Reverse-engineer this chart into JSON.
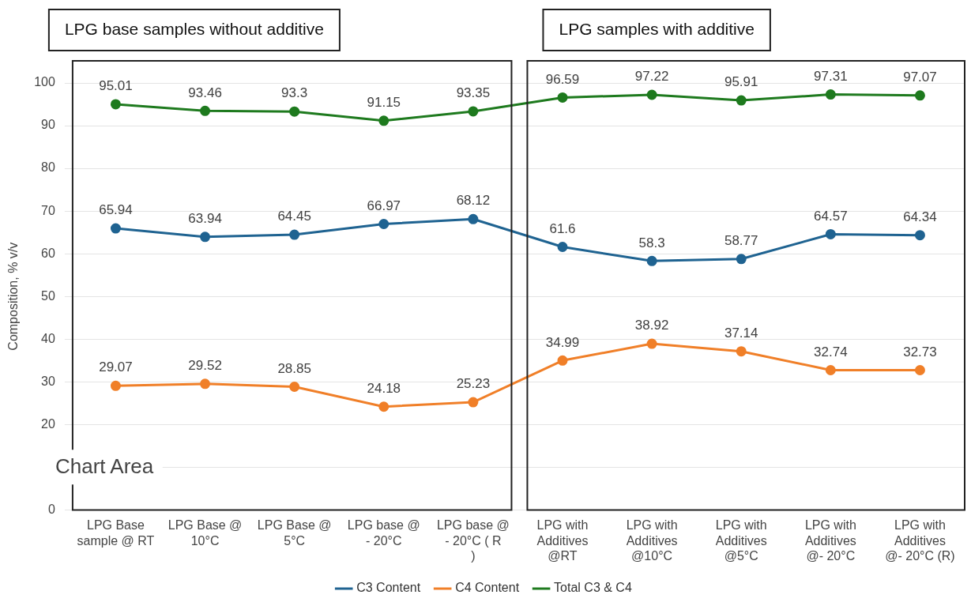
{
  "chart_data": {
    "type": "line",
    "ylabel": "Composition, % v/v",
    "categories": [
      "LPG Base sample @ RT",
      "LPG Base @ 10°C",
      "LPG Base @ 5°C",
      "LPG base @ - 20°C",
      "LPG base @ - 20°C ( R )",
      "LPG with Additives @RT",
      "LPG with Additives @10°C",
      "LPG with Additives @5°C",
      "LPG with Additives @- 20°C",
      "LPG with Additives @- 20°C (R)"
    ],
    "series": [
      {
        "name": "C3 Content",
        "color": "#1f6391",
        "values": [
          65.94,
          63.94,
          64.45,
          66.97,
          68.12,
          61.6,
          58.3,
          58.77,
          64.57,
          64.34
        ]
      },
      {
        "name": "C4 Content",
        "color": "#f07f28",
        "values": [
          29.07,
          29.52,
          28.85,
          24.18,
          25.23,
          34.99,
          38.92,
          37.14,
          32.74,
          32.73
        ]
      },
      {
        "name": "Total C3 & C4",
        "color": "#1e7a1e",
        "values": [
          95.01,
          93.46,
          93.3,
          91.15,
          93.35,
          96.59,
          97.22,
          95.91,
          97.31,
          97.07
        ]
      }
    ],
    "ylim": [
      0,
      100
    ],
    "yticks": [
      0,
      {
        "value": 10,
        "label": null
      },
      20,
      30,
      40,
      50,
      60,
      70,
      80,
      90,
      100
    ],
    "grid": "y",
    "legend": "bottom",
    "marker": "circle",
    "line_style": "solid",
    "data_labels": true,
    "annotations": [
      "LPG base samples without additive",
      "LPG samples with additive",
      "Chart Area"
    ]
  }
}
